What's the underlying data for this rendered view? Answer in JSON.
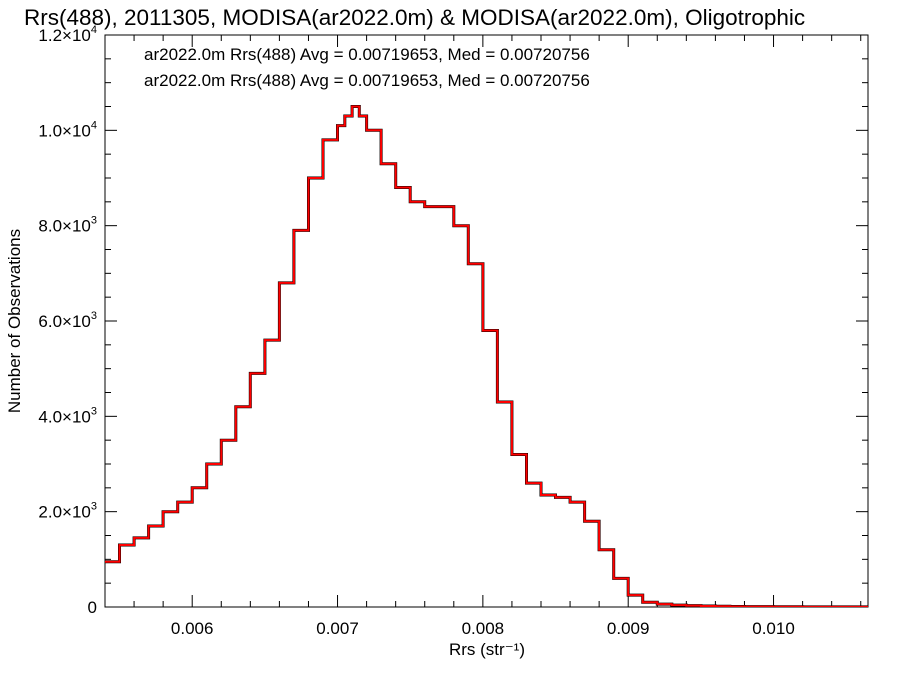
{
  "chart_data": {
    "type": "line",
    "title": "Rrs(488), 2011305, MODISA(ar2022.0m) & MODISA(ar2022.0m), Oligotrophic",
    "xlabel": "Rrs (str⁻¹)",
    "ylabel": "Number of Observations",
    "xlim": [
      0.0054,
      0.01065
    ],
    "ylim": [
      0,
      12000
    ],
    "x_ticks": [
      0.006,
      0.007,
      0.008,
      0.009,
      0.01
    ],
    "x_tick_labels": [
      "0.006",
      "0.007",
      "0.008",
      "0.009",
      "0.010"
    ],
    "y_ticks": [
      0,
      2000,
      4000,
      6000,
      8000,
      10000,
      12000
    ],
    "y_tick_labels": [
      {
        "mant": "0",
        "exp": ""
      },
      {
        "mant": "2.0×10",
        "exp": "3"
      },
      {
        "mant": "4.0×10",
        "exp": "3"
      },
      {
        "mant": "6.0×10",
        "exp": "3"
      },
      {
        "mant": "8.0×10",
        "exp": "3"
      },
      {
        "mant": "1.0×10",
        "exp": "4"
      },
      {
        "mant": "1.2×10",
        "exp": "4"
      }
    ],
    "legend": [
      {
        "text": "ar2022.0m Rrs(488) Avg = 0.00719653, Med = 0.00720756",
        "color": "#000000"
      },
      {
        "text": "ar2022.0m Rrs(488) Avg = 0.00719653, Med = 0.00720756",
        "color": "#ff0000"
      }
    ],
    "series": [
      {
        "color": "#000000",
        "x": [
          0.0054,
          0.0055,
          0.0056,
          0.0057,
          0.0058,
          0.0059,
          0.006,
          0.0061,
          0.0062,
          0.0063,
          0.0064,
          0.0065,
          0.0066,
          0.0067,
          0.0068,
          0.0069,
          0.007,
          0.00705,
          0.0071,
          0.00715,
          0.0072,
          0.0073,
          0.0074,
          0.0075,
          0.0076,
          0.0077,
          0.0078,
          0.0079,
          0.008,
          0.0081,
          0.0082,
          0.0083,
          0.0084,
          0.0085,
          0.0086,
          0.0087,
          0.0088,
          0.0089,
          0.009,
          0.0091,
          0.0092,
          0.0093,
          0.0094,
          0.0095,
          0.0096,
          0.0097,
          0.0098,
          0.01,
          0.0102,
          0.01065
        ],
        "y": [
          950,
          1300,
          1450,
          1700,
          2000,
          2200,
          2500,
          3000,
          3500,
          4200,
          4900,
          5600,
          6800,
          7900,
          9000,
          9800,
          10100,
          10300,
          10500,
          10300,
          10000,
          9300,
          8800,
          8500,
          8400,
          8400,
          8000,
          7200,
          5800,
          4300,
          3200,
          2600,
          2350,
          2300,
          2200,
          1800,
          1200,
          600,
          250,
          100,
          60,
          40,
          30,
          20,
          15,
          10,
          8,
          5,
          3,
          2
        ]
      },
      {
        "color": "#ff0000",
        "x": [
          0.0054,
          0.0055,
          0.0056,
          0.0057,
          0.0058,
          0.0059,
          0.006,
          0.0061,
          0.0062,
          0.0063,
          0.0064,
          0.0065,
          0.0066,
          0.0067,
          0.0068,
          0.0069,
          0.007,
          0.00705,
          0.0071,
          0.00715,
          0.0072,
          0.0073,
          0.0074,
          0.0075,
          0.0076,
          0.0077,
          0.0078,
          0.0079,
          0.008,
          0.0081,
          0.0082,
          0.0083,
          0.0084,
          0.0085,
          0.0086,
          0.0087,
          0.0088,
          0.0089,
          0.009,
          0.0091,
          0.0092,
          0.0093,
          0.0094,
          0.0095,
          0.0096,
          0.0097,
          0.0098,
          0.01,
          0.0102,
          0.01065
        ],
        "y": [
          950,
          1300,
          1450,
          1700,
          2000,
          2200,
          2500,
          3000,
          3500,
          4200,
          4900,
          5600,
          6800,
          7900,
          9000,
          9800,
          10100,
          10300,
          10500,
          10300,
          10000,
          9300,
          8800,
          8500,
          8400,
          8400,
          8000,
          7200,
          5800,
          4300,
          3200,
          2600,
          2350,
          2300,
          2200,
          1800,
          1200,
          600,
          250,
          100,
          60,
          40,
          30,
          20,
          15,
          10,
          8,
          5,
          3,
          2
        ]
      }
    ],
    "grid": false,
    "legend_position": "top-left"
  }
}
